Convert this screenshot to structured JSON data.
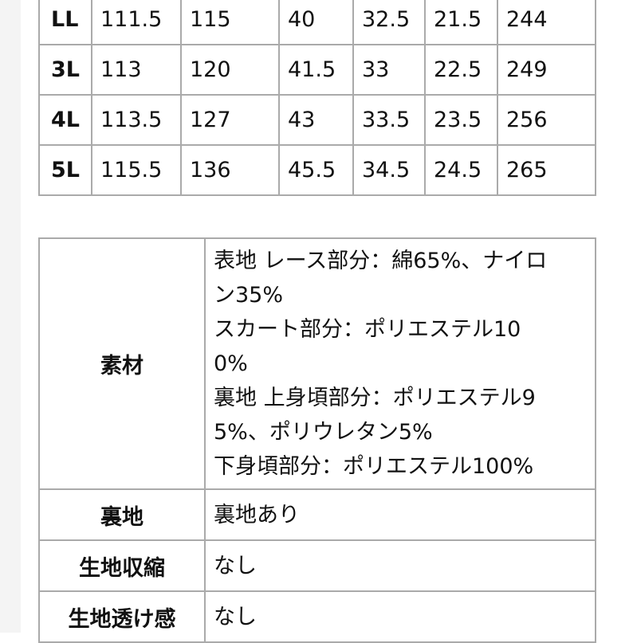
{
  "size_table": {
    "rows": [
      [
        "LL",
        "111.5",
        "115",
        "40",
        "32.5",
        "21.5",
        "244"
      ],
      [
        "3L",
        "113",
        "120",
        "41.5",
        "33",
        "22.5",
        "249"
      ],
      [
        "4L",
        "113.5",
        "127",
        "43",
        "33.5",
        "23.5",
        "256"
      ],
      [
        "5L",
        "115.5",
        "136",
        "45.5",
        "34.5",
        "24.5",
        "265"
      ]
    ]
  },
  "spec_table": {
    "rows": [
      {
        "label": "素材",
        "lines": [
          "表地 レース部分：綿65%、ナイロ",
          "ン35%",
          "スカート部分：ポリエステル10",
          "0%",
          "裏地 上身頃部分：ポリエステル9",
          "5%、ポリウレタン5%",
          "下身頃部分：ポリエステル100%"
        ]
      },
      {
        "label": "裏地",
        "lines": [
          "裏地あり"
        ]
      },
      {
        "label": "生地収縮",
        "lines": [
          "なし"
        ]
      },
      {
        "label": "生地透け感",
        "lines": [
          "なし"
        ]
      }
    ]
  }
}
